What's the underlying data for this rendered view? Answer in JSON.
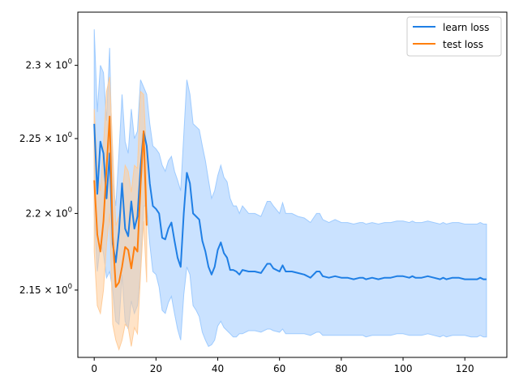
{
  "chart_data": {
    "type": "line",
    "title": "",
    "xlabel": "",
    "ylabel": "",
    "xlim": [
      -5.3,
      133.6
    ],
    "ylim": [
      2.107,
      2.337
    ],
    "yscale": "log",
    "grid": false,
    "legend_position": "top-right",
    "x_ticks": [
      0,
      20,
      40,
      60,
      80,
      100,
      120
    ],
    "x_tick_labels": [
      "0",
      "20",
      "40",
      "60",
      "80",
      "100",
      "120"
    ],
    "y_ticks": [
      2.15,
      2.2,
      2.25,
      2.3
    ],
    "y_tick_labels": [
      {
        "base": "2.15",
        "sep": " × ",
        "exp_base": "10",
        "exp": "0"
      },
      {
        "base": "2.2",
        "sep": " × ",
        "exp_base": "10",
        "exp": "0"
      },
      {
        "base": "2.25",
        "sep": " × ",
        "exp_base": "10",
        "exp": "0"
      },
      {
        "base": "2.3",
        "sep": " × ",
        "exp_base": "10",
        "exp": "0"
      }
    ],
    "series": [
      {
        "name": "learn loss",
        "color": "#1f7fe5",
        "band_color": "#9ecbff",
        "x": [
          0,
          1,
          2,
          3,
          4,
          5,
          6,
          7,
          8,
          9,
          10,
          11,
          12,
          13,
          14,
          15,
          16,
          17,
          18,
          19,
          20,
          21,
          22,
          23,
          24,
          25,
          26,
          27,
          28,
          29,
          30,
          31,
          32,
          33,
          34,
          35,
          36,
          37,
          38,
          39,
          40,
          41,
          42,
          43,
          44,
          45,
          46,
          47,
          48,
          50,
          52,
          54,
          56,
          57,
          58,
          60,
          61,
          62,
          64,
          66,
          68,
          70,
          72,
          73,
          74,
          76,
          78,
          80,
          82,
          84,
          86,
          87,
          88,
          90,
          92,
          94,
          96,
          98,
          100,
          102,
          103,
          104,
          106,
          108,
          110,
          112,
          113,
          114,
          116,
          118,
          120,
          122,
          124,
          125,
          126,
          127
        ],
        "values": [
          2.26,
          2.213,
          2.248,
          2.24,
          2.21,
          2.24,
          2.18,
          2.168,
          2.188,
          2.22,
          2.19,
          2.185,
          2.208,
          2.19,
          2.198,
          2.23,
          2.255,
          2.245,
          2.22,
          2.205,
          2.203,
          2.2,
          2.184,
          2.183,
          2.19,
          2.194,
          2.182,
          2.171,
          2.165,
          2.2,
          2.227,
          2.22,
          2.2,
          2.198,
          2.196,
          2.182,
          2.175,
          2.165,
          2.16,
          2.165,
          2.176,
          2.181,
          2.174,
          2.171,
          2.163,
          2.163,
          2.162,
          2.16,
          2.163,
          2.162,
          2.162,
          2.161,
          2.167,
          2.167,
          2.164,
          2.162,
          2.166,
          2.162,
          2.162,
          2.161,
          2.16,
          2.158,
          2.162,
          2.162,
          2.159,
          2.158,
          2.159,
          2.158,
          2.158,
          2.157,
          2.158,
          2.158,
          2.157,
          2.158,
          2.157,
          2.158,
          2.158,
          2.159,
          2.159,
          2.158,
          2.159,
          2.158,
          2.158,
          2.159,
          2.158,
          2.157,
          2.158,
          2.157,
          2.158,
          2.158,
          2.157,
          2.157,
          2.157,
          2.158,
          2.157,
          2.157
        ],
        "band_lower": [
          2.2,
          2.162,
          2.18,
          2.174,
          2.158,
          2.162,
          2.15,
          2.13,
          2.128,
          2.16,
          2.13,
          2.125,
          2.143,
          2.135,
          2.14,
          2.162,
          2.205,
          2.205,
          2.18,
          2.162,
          2.16,
          2.152,
          2.137,
          2.135,
          2.142,
          2.146,
          2.135,
          2.125,
          2.118,
          2.147,
          2.165,
          2.16,
          2.14,
          2.137,
          2.133,
          2.123,
          2.118,
          2.114,
          2.115,
          2.118,
          2.127,
          2.13,
          2.126,
          2.124,
          2.122,
          2.12,
          2.12,
          2.122,
          2.122,
          2.124,
          2.124,
          2.123,
          2.125,
          2.125,
          2.124,
          2.123,
          2.125,
          2.122,
          2.122,
          2.122,
          2.122,
          2.121,
          2.123,
          2.123,
          2.121,
          2.121,
          2.121,
          2.121,
          2.121,
          2.121,
          2.121,
          2.121,
          2.12,
          2.121,
          2.121,
          2.121,
          2.121,
          2.122,
          2.122,
          2.121,
          2.121,
          2.121,
          2.121,
          2.122,
          2.121,
          2.12,
          2.121,
          2.12,
          2.121,
          2.121,
          2.121,
          2.12,
          2.12,
          2.121,
          2.12,
          2.12
        ],
        "band_upper": [
          2.325,
          2.268,
          2.3,
          2.295,
          2.262,
          2.312,
          2.22,
          2.205,
          2.24,
          2.28,
          2.248,
          2.24,
          2.27,
          2.25,
          2.255,
          2.29,
          2.285,
          2.28,
          2.26,
          2.245,
          2.243,
          2.24,
          2.232,
          2.228,
          2.235,
          2.238,
          2.228,
          2.222,
          2.215,
          2.252,
          2.29,
          2.28,
          2.26,
          2.258,
          2.256,
          2.245,
          2.235,
          2.222,
          2.21,
          2.215,
          2.225,
          2.232,
          2.224,
          2.221,
          2.21,
          2.205,
          2.205,
          2.2,
          2.205,
          2.2,
          2.2,
          2.198,
          2.208,
          2.208,
          2.205,
          2.2,
          2.207,
          2.2,
          2.2,
          2.198,
          2.197,
          2.194,
          2.2,
          2.2,
          2.196,
          2.194,
          2.196,
          2.194,
          2.194,
          2.193,
          2.194,
          2.194,
          2.193,
          2.194,
          2.193,
          2.194,
          2.194,
          2.195,
          2.195,
          2.194,
          2.195,
          2.194,
          2.194,
          2.195,
          2.194,
          2.193,
          2.194,
          2.193,
          2.194,
          2.194,
          2.193,
          2.193,
          2.193,
          2.194,
          2.193,
          2.193
        ]
      },
      {
        "name": "test loss",
        "color": "#ff7f0e",
        "band_color": "#ffcc99",
        "x": [
          0,
          1,
          2,
          3,
          4,
          5,
          6,
          7,
          8,
          9,
          10,
          11,
          12,
          13,
          14,
          15,
          16,
          17
        ],
        "values": [
          2.222,
          2.186,
          2.175,
          2.195,
          2.23,
          2.265,
          2.185,
          2.152,
          2.155,
          2.165,
          2.178,
          2.176,
          2.164,
          2.178,
          2.175,
          2.218,
          2.255,
          2.192
        ],
        "band_lower": [
          2.175,
          2.14,
          2.135,
          2.15,
          2.18,
          2.2,
          2.128,
          2.118,
          2.112,
          2.118,
          2.128,
          2.126,
          2.114,
          2.126,
          2.122,
          2.16,
          2.195,
          2.155
        ],
        "band_upper": [
          2.27,
          2.23,
          2.215,
          2.245,
          2.282,
          2.292,
          2.242,
          2.192,
          2.198,
          2.212,
          2.232,
          2.228,
          2.214,
          2.232,
          2.23,
          2.282,
          2.28,
          2.235
        ]
      }
    ]
  }
}
